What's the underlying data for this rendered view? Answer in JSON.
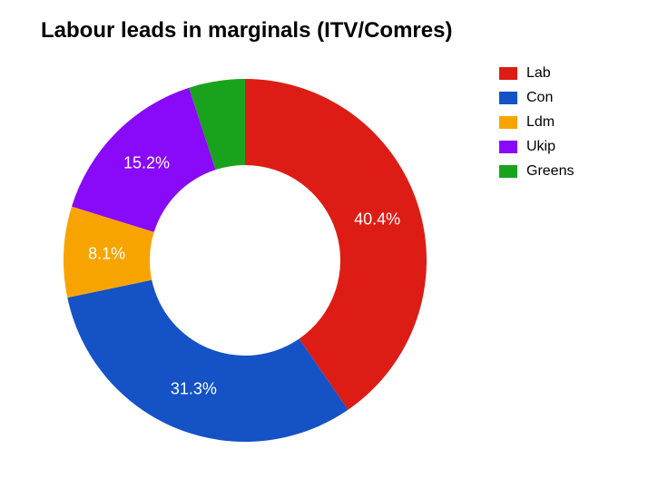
{
  "chart": {
    "type": "donut",
    "title": "Labour leads in marginals (ITV/Comres)",
    "title_fontsize": 24,
    "title_fontweight": 700,
    "title_color": "#000000",
    "background_color": "#ffffff",
    "outer_radius": 200,
    "inner_radius": 105,
    "series": [
      {
        "id": "lab",
        "label": "Lab",
        "value": 40.4,
        "color": "#dd1d15",
        "pct_label": "40.4%"
      },
      {
        "id": "con",
        "label": "Con",
        "value": 31.3,
        "color": "#1452c6",
        "pct_label": "31.3%"
      },
      {
        "id": "ldm",
        "label": "Ldm",
        "value": 8.1,
        "color": "#f8a400",
        "pct_label": "8.1%"
      },
      {
        "id": "ukip",
        "label": "Ukip",
        "value": 15.2,
        "color": "#8909f9",
        "pct_label": "15.2%"
      },
      {
        "id": "greens",
        "label": "Greens",
        "value": 5.0,
        "color": "#19a31c",
        "pct_label": ""
      }
    ],
    "label_fontsize": 18,
    "label_color": "#ffffff",
    "legend": {
      "fontsize": 16,
      "color": "#000000",
      "swatch_width": 20,
      "swatch_height": 14
    }
  }
}
